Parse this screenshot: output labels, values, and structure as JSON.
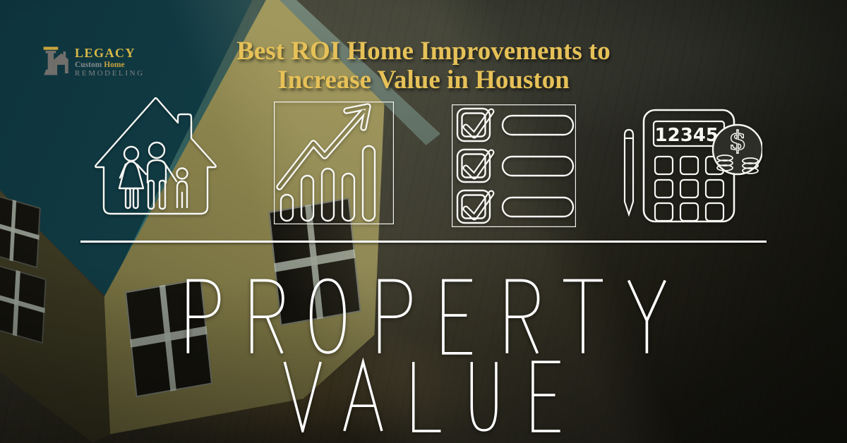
{
  "brand": {
    "mark": "column-house-b-monogram",
    "name": "LEGACY",
    "tagline_gray": "Custom",
    "tagline_gold": "Home",
    "subtitle": "REMODELING"
  },
  "title": {
    "line1": "Best ROI Home Improvements to",
    "line2": "Increase Value in Houston"
  },
  "icons": {
    "list": [
      "house-with-family",
      "growth-chart-arrow",
      "checklist",
      "calculator-savings"
    ],
    "calculator_display": "12345",
    "coin_symbol": "$"
  },
  "headline": {
    "line1": "PROPERTY",
    "line2": "VALUE"
  },
  "colors": {
    "title_gold": "#e6c158",
    "logo_gold": "#d9b946",
    "logo_gray": "#82868a",
    "icon_stroke": "#f7f7f4",
    "headline_white": "#ffffff",
    "roof_teal": "#16464f",
    "roof_edge_bright": "#35aeb2",
    "wall_yellow": "#8d8650",
    "wood_dark": "#262419"
  }
}
